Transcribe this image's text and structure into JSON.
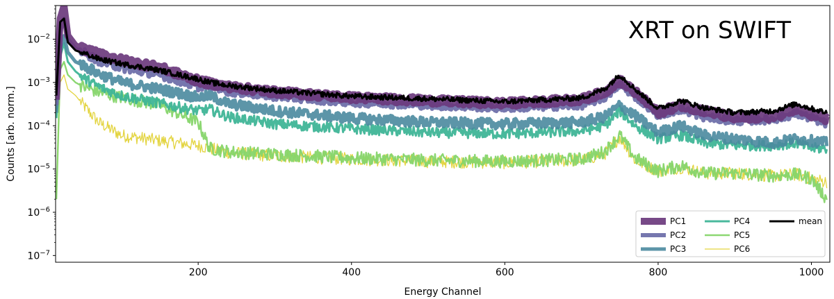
{
  "chart_data": {
    "type": "line",
    "title": "",
    "annotation": "XRT on SWIFT",
    "xlabel": "Energy Channel",
    "ylabel": "Counts [arb. norm.]",
    "xlim": [
      14,
      1024
    ],
    "ylim": [
      7e-08,
      0.06
    ],
    "yscale": "log",
    "grid": false,
    "legend_position": "lower-right",
    "x_ticks": [
      {
        "value": 200,
        "label": "200"
      },
      {
        "value": 400,
        "label": "400"
      },
      {
        "value": 600,
        "label": "600"
      },
      {
        "value": 800,
        "label": "800"
      },
      {
        "value": 1000,
        "label": "1000"
      }
    ],
    "y_ticks": [
      {
        "value": 1e-07,
        "base": "10",
        "exp": "−7"
      },
      {
        "value": 1e-06,
        "base": "10",
        "exp": "−6"
      },
      {
        "value": 1e-05,
        "base": "10",
        "exp": "−5"
      },
      {
        "value": 0.0001,
        "base": "10",
        "exp": "−4"
      },
      {
        "value": 0.001,
        "base": "10",
        "exp": "−3"
      },
      {
        "value": 0.01,
        "base": "10",
        "exp": "−2"
      }
    ],
    "x": [
      15,
      20,
      25,
      30,
      40,
      50,
      70,
      100,
      150,
      200,
      215,
      240,
      300,
      400,
      500,
      600,
      700,
      730,
      750,
      770,
      800,
      830,
      860,
      900,
      950,
      980,
      1000,
      1020
    ],
    "series": [
      {
        "name": "PC1",
        "color": "#6b3a7d",
        "width": 10,
        "opacity": 0.92,
        "noise": 0.08,
        "values": [
          0.0004,
          0.03,
          0.06,
          0.012,
          0.007,
          0.006,
          0.0045,
          0.0033,
          0.0022,
          0.0011,
          0.00095,
          0.0008,
          0.0006,
          0.00045,
          0.00038,
          0.00033,
          0.0004,
          0.0006,
          0.0011,
          0.0006,
          0.0002,
          0.0003,
          0.00022,
          0.00015,
          0.00016,
          0.00024,
          0.00018,
          0.00014
        ]
      },
      {
        "name": "PC2",
        "color": "#6a6ba7",
        "width": 6,
        "opacity": 0.92,
        "noise": 0.09,
        "values": [
          0.0003,
          0.015,
          0.03,
          0.01,
          0.006,
          0.005,
          0.0032,
          0.0022,
          0.0015,
          0.0008,
          0.0009,
          0.00062,
          0.00048,
          0.00035,
          0.0003,
          0.00026,
          0.0003,
          0.00045,
          0.0009,
          0.00048,
          0.00018,
          0.00024,
          0.00016,
          0.00013,
          0.00014,
          0.00019,
          0.00015,
          0.00011
        ]
      },
      {
        "name": "PC3",
        "color": "#4a8a9e",
        "width": 5,
        "opacity": 0.9,
        "noise": 0.12,
        "values": [
          0.0002,
          0.006,
          0.012,
          0.005,
          0.003,
          0.0025,
          0.0016,
          0.001,
          0.0007,
          0.00045,
          0.0005,
          0.00032,
          0.00022,
          0.00015,
          0.00012,
          0.00011,
          0.00012,
          0.00016,
          0.0003,
          0.00017,
          7e-05,
          0.0001,
          6e-05,
          5e-05,
          4e-05,
          5e-05,
          4.5e-05,
          4e-05
        ]
      },
      {
        "name": "PC4",
        "color": "#3fb597",
        "width": 3,
        "opacity": 0.95,
        "noise": 0.12,
        "values": [
          0.00015,
          0.004,
          0.008,
          0.003,
          0.0018,
          0.0013,
          0.0008,
          0.0005,
          0.00033,
          0.00022,
          0.00024,
          0.00016,
          0.00011,
          8.5e-05,
          7e-05,
          6.5e-05,
          7.5e-05,
          0.0001,
          0.00022,
          0.0001,
          5e-05,
          6e-05,
          4e-05,
          3.5e-05,
          3.5e-05,
          4e-05,
          3e-05,
          3e-05
        ]
      },
      {
        "name": "PC5",
        "color": "#86d56a",
        "width": 2.4,
        "opacity": 0.95,
        "noise": 0.15,
        "values": [
          2e-06,
          0.002,
          0.003,
          0.0015,
          0.001,
          0.0008,
          0.0006,
          0.00045,
          0.0003,
          0.00012,
          3e-05,
          2.5e-05,
          2.2e-05,
          1.8e-05,
          1.6e-05,
          1.5e-05,
          1.7e-05,
          2.5e-05,
          6e-05,
          1.8e-05,
          9e-06,
          1.2e-05,
          8e-06,
          8e-06,
          7e-06,
          7.5e-06,
          6e-06,
          2e-06
        ]
      },
      {
        "name": "PC6",
        "color": "#e3d43f",
        "width": 1.3,
        "opacity": 1,
        "noise": 0.15,
        "values": [
          3e-06,
          0.001,
          0.0015,
          0.0007,
          0.0005,
          0.0003,
          0.00012,
          6e-05,
          4.5e-05,
          3.5e-05,
          3e-05,
          2.4e-05,
          2e-05,
          1.7e-05,
          1.5e-05,
          1.4e-05,
          1.6e-05,
          2.2e-05,
          5.5e-05,
          1.6e-05,
          9e-06,
          1.1e-05,
          8e-06,
          8e-06,
          7e-06,
          7.5e-06,
          6e-06,
          5e-06
        ]
      },
      {
        "name": "mean",
        "color": "#000000",
        "width": 3,
        "opacity": 1,
        "noise": 0.06,
        "values": [
          0.0005,
          0.025,
          0.03,
          0.0085,
          0.0055,
          0.0048,
          0.0035,
          0.0027,
          0.0019,
          0.0012,
          0.001,
          0.00085,
          0.00065,
          0.00048,
          0.00042,
          0.00036,
          0.00044,
          0.0007,
          0.0015,
          0.0007,
          0.00025,
          0.00038,
          0.00026,
          0.0002,
          0.00022,
          0.00032,
          0.00025,
          0.0002
        ]
      }
    ]
  }
}
